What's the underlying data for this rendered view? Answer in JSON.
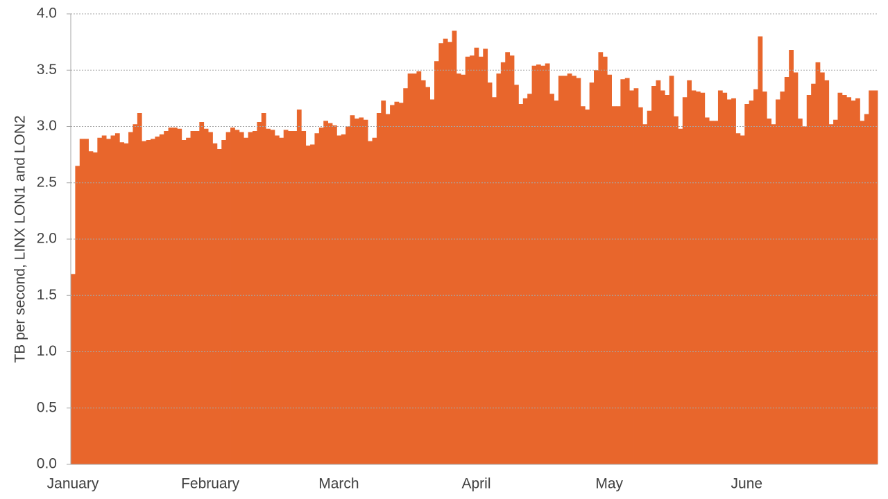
{
  "chart_data": {
    "type": "bar",
    "y_label": "TB per second, LINX LON1 and LON2",
    "color": "#e8662c",
    "grid": true,
    "ylim": [
      0,
      4
    ],
    "yticks": [
      {
        "value": 0,
        "label": "0.0"
      },
      0.5,
      {
        "value": 1,
        "label": "1.0"
      },
      1.5,
      {
        "value": 2,
        "label": "2.0"
      },
      2.5,
      {
        "value": 3,
        "label": "3.0"
      },
      3.5,
      {
        "value": 4,
        "label": "4.0"
      }
    ],
    "categories": [
      "January",
      null,
      null,
      null,
      null,
      null,
      null,
      null,
      null,
      null,
      null,
      null,
      null,
      null,
      null,
      null,
      null,
      null,
      null,
      null,
      null,
      null,
      null,
      null,
      null,
      null,
      null,
      null,
      null,
      null,
      null,
      "February",
      null,
      null,
      null,
      null,
      null,
      null,
      null,
      null,
      null,
      null,
      null,
      null,
      null,
      null,
      null,
      null,
      null,
      null,
      null,
      null,
      null,
      null,
      null,
      null,
      null,
      null,
      null,
      null,
      "March",
      null,
      null,
      null,
      null,
      null,
      null,
      null,
      null,
      null,
      null,
      null,
      null,
      null,
      null,
      null,
      null,
      null,
      null,
      null,
      null,
      null,
      null,
      null,
      null,
      null,
      null,
      null,
      null,
      null,
      null,
      "April",
      null,
      null,
      null,
      null,
      null,
      null,
      null,
      null,
      null,
      null,
      null,
      null,
      null,
      null,
      null,
      null,
      null,
      null,
      null,
      null,
      null,
      null,
      null,
      null,
      null,
      null,
      null,
      null,
      null,
      "May",
      null,
      null,
      null,
      null,
      null,
      null,
      null,
      null,
      null,
      null,
      null,
      null,
      null,
      null,
      null,
      null,
      null,
      null,
      null,
      null,
      null,
      null,
      null,
      null,
      null,
      null,
      null,
      null,
      null,
      null,
      "June",
      null,
      null,
      null,
      null,
      null,
      null,
      null,
      null,
      null,
      null,
      null,
      null,
      null,
      null,
      null,
      null,
      null,
      null,
      null,
      null,
      null,
      null,
      null,
      null,
      null,
      null,
      null,
      null,
      null
    ],
    "values": [
      1.69,
      2.65,
      2.89,
      2.89,
      2.78,
      2.77,
      2.9,
      2.92,
      2.89,
      2.92,
      2.94,
      2.86,
      2.85,
      2.95,
      3.02,
      3.12,
      2.87,
      2.88,
      2.89,
      2.91,
      2.93,
      2.96,
      2.99,
      2.99,
      2.98,
      2.88,
      2.9,
      2.96,
      2.96,
      3.04,
      2.98,
      2.95,
      2.85,
      2.8,
      2.88,
      2.95,
      2.99,
      2.97,
      2.95,
      2.9,
      2.95,
      2.96,
      3.04,
      3.12,
      2.98,
      2.97,
      2.92,
      2.9,
      2.97,
      2.96,
      2.96,
      3.15,
      2.96,
      2.83,
      2.84,
      2.94,
      2.99,
      3.05,
      3.03,
      3.01,
      2.92,
      2.93,
      3.0,
      3.1,
      3.07,
      3.08,
      3.06,
      2.87,
      2.9,
      3.12,
      3.23,
      3.11,
      3.19,
      3.22,
      3.21,
      3.34,
      3.47,
      3.47,
      3.49,
      3.41,
      3.35,
      3.24,
      3.58,
      3.74,
      3.78,
      3.75,
      3.85,
      3.47,
      3.46,
      3.62,
      3.63,
      3.7,
      3.62,
      3.69,
      3.39,
      3.26,
      3.47,
      3.57,
      3.66,
      3.63,
      3.37,
      3.2,
      3.25,
      3.29,
      3.54,
      3.55,
      3.54,
      3.56,
      3.29,
      3.23,
      3.45,
      3.45,
      3.47,
      3.45,
      3.43,
      3.18,
      3.15,
      3.39,
      3.5,
      3.66,
      3.62,
      3.46,
      3.18,
      3.18,
      3.42,
      3.43,
      3.32,
      3.34,
      3.17,
      3.02,
      3.14,
      3.36,
      3.41,
      3.32,
      3.28,
      3.45,
      3.09,
      2.98,
      3.26,
      3.41,
      3.32,
      3.31,
      3.3,
      3.08,
      3.05,
      3.05,
      3.32,
      3.3,
      3.24,
      3.25,
      2.94,
      2.92,
      3.2,
      3.23,
      3.33,
      3.8,
      3.31,
      3.07,
      3.02,
      3.24,
      3.31,
      3.44,
      3.68,
      3.48,
      3.07,
      3.0,
      3.28,
      3.38,
      3.57,
      3.48,
      3.41,
      3.02,
      3.06,
      3.3,
      3.28,
      3.26,
      3.23,
      3.25,
      3.05,
      3.11,
      3.32,
      3.32
    ]
  }
}
